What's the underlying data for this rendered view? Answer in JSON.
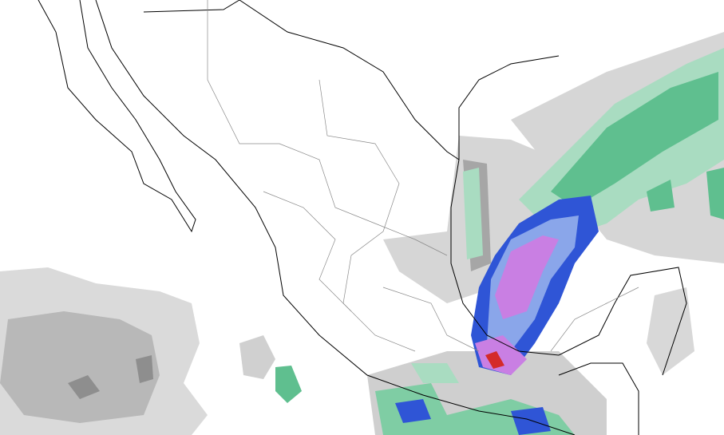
{
  "map": {
    "region": "",
    "colors": {
      "background": "#ffffff",
      "outline": "#000000",
      "state_border": "#9a9a9a",
      "light_gray": "#d9d9d9",
      "mid_gray": "#b4b4b4",
      "dark_gray": "#8c8c8c",
      "light_green": "#a9dcc1",
      "green": "#5fbf8f",
      "dark_green": "#2e9e6c",
      "light_blue": "#7a9ae8",
      "blue": "#2f55d6",
      "purple": "#c07ae0",
      "red": "#d42a2a"
    }
  }
}
